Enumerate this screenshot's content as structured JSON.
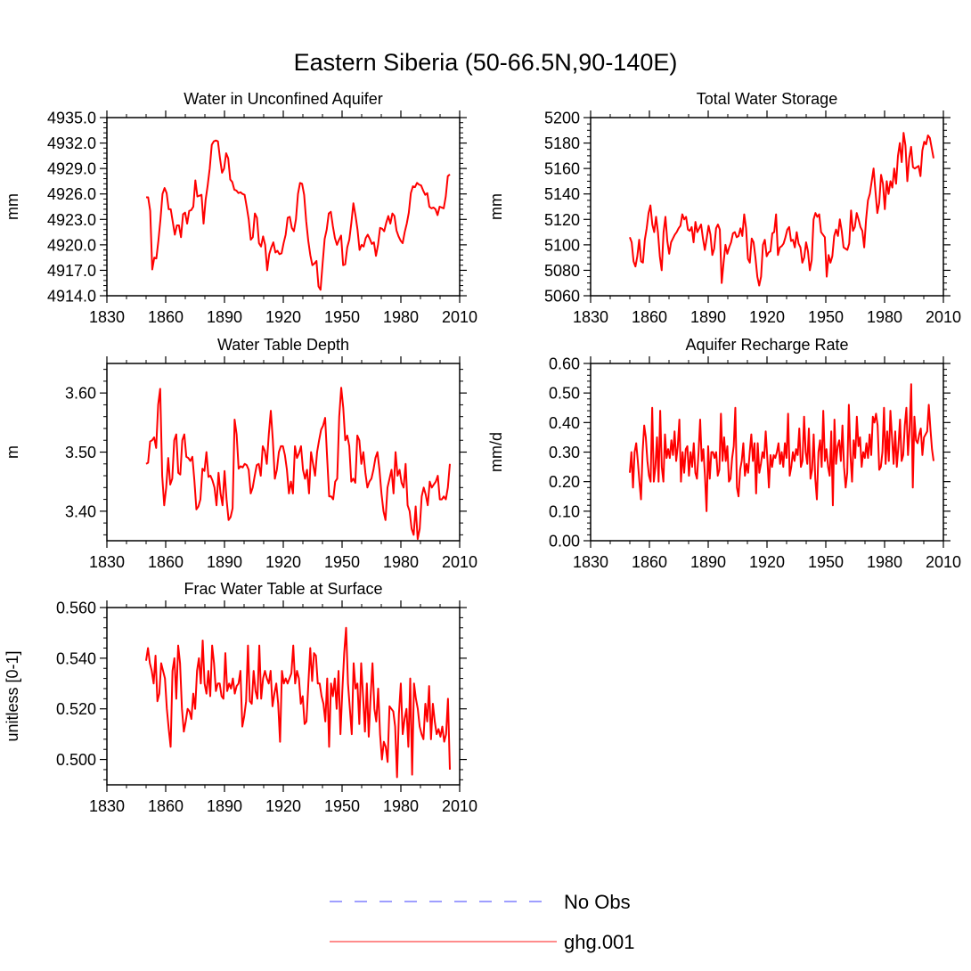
{
  "figure": {
    "title": "Eastern Siberia (50-66.5N,90-140E)",
    "line_color": "#ff0000",
    "obs_color": "#7f7fff"
  },
  "legend": {
    "entries": [
      {
        "label": "No Obs",
        "style": "dashed",
        "color": "#7f7fff"
      },
      {
        "label": "ghg.001",
        "style": "solid",
        "color": "#ff0000"
      }
    ]
  },
  "chart_data": [
    {
      "type": "line",
      "title": "Water in Unconfined Aquifer",
      "ylabel": "mm",
      "xlabel": "",
      "xlim": [
        1830,
        2010
      ],
      "xticks": [
        1830,
        1860,
        1890,
        1920,
        1950,
        1980,
        2010
      ],
      "ylim": [
        4914,
        4935
      ],
      "yticks": [
        4914,
        4917,
        4920,
        4923,
        4926,
        4929,
        4932,
        4935
      ],
      "ytick_labels": [
        "4914.0",
        "4917.0",
        "4920.0",
        "4923.0",
        "4926.0",
        "4929.0",
        "4932.0",
        "4935.0"
      ],
      "yminor": 5,
      "xstart": 1850,
      "series": [
        {
          "name": "ghg.001",
          "values": [
            4925.6,
            4925.6,
            4924,
            4917.1,
            4918.5,
            4918.4,
            4920.5,
            4923,
            4926,
            4926.7,
            4926.1,
            4924.2,
            4924.2,
            4922.7,
            4921.2,
            4922.3,
            4922.3,
            4920.9,
            4923.6,
            4923.8,
            4922.5,
            4924,
            4924.1,
            4924.5,
            4927.6,
            4925.7,
            4925.8,
            4925.9,
            4922.5,
            4925.3,
            4927,
            4929,
            4931.8,
            4932.2,
            4932.3,
            4932.2,
            4930.2,
            4928.5,
            4929,
            4930.8,
            4930.2,
            4927.7,
            4927.4,
            4926.5,
            4926.4,
            4926.1,
            4926.2,
            4926,
            4925.9,
            4924.5,
            4923,
            4920.6,
            4920.9,
            4923.7,
            4923.2,
            4920.2,
            4919.8,
            4921,
            4920,
            4917,
            4918.9,
            4919.7,
            4920.3,
            4919.1,
            4919.3,
            4918.9,
            4919,
            4920.2,
            4921.2,
            4923.2,
            4923.3,
            4922,
            4921.6,
            4923,
            4926,
            4927.3,
            4927.2,
            4925.9,
            4922.8,
            4920.5,
            4918.8,
            4917.6,
            4917.8,
            4918.1,
            4915.1,
            4914.7,
            4917.8,
            4920.7,
            4921.8,
            4923.7,
            4923.9,
            4922.2,
            4920.8,
            4920,
            4920.6,
            4921.1,
            4917.6,
            4917.7,
            4919.7,
            4920.6,
            4922.6,
            4924.9,
            4923.5,
            4921.8,
            4919.4,
            4920,
            4919.8,
            4920.8,
            4921.2,
            4920.7,
            4920.1,
            4920.3,
            4918.7,
            4920,
            4922,
            4921.9,
            4921.6,
            4922.6,
            4923.4,
            4922.5,
            4923.7,
            4923.4,
            4921.7,
            4921,
            4920.5,
            4920.2,
            4921.5,
            4922.5,
            4923.8,
            4926.1,
            4926.9,
            4926.8,
            4927.3,
            4927.1,
            4927,
            4926.4,
            4925.9,
            4926.1,
            4924.5,
            4924.3,
            4924.4,
            4924.2,
            4923.5,
            4924.5,
            4924.4,
            4924.3,
            4925.7,
            4928.1,
            4928.3
          ]
        }
      ]
    },
    {
      "type": "line",
      "title": "Total Water Storage",
      "ylabel": "mm",
      "xlabel": "",
      "xlim": [
        1830,
        2010
      ],
      "xticks": [
        1830,
        1860,
        1890,
        1920,
        1950,
        1980,
        2010
      ],
      "ylim": [
        5060,
        5200
      ],
      "yticks": [
        5060,
        5080,
        5100,
        5120,
        5140,
        5160,
        5180,
        5200
      ],
      "ytick_labels": [
        "5060",
        "5080",
        "5100",
        "5120",
        "5140",
        "5160",
        "5180",
        "5200"
      ],
      "yminor": 4,
      "xstart": 1850,
      "series": [
        {
          "name": "ghg.001",
          "values": [
            5106,
            5102,
            5087,
            5083,
            5091,
            5104,
            5087,
            5086,
            5104,
            5113,
            5125,
            5131,
            5116,
            5110,
            5122,
            5110,
            5091,
            5080,
            5110,
            5122,
            5103,
            5093,
            5102,
            5105,
            5108,
            5110,
            5113,
            5115,
            5124,
            5120,
            5122,
            5112,
            5111,
            5114,
            5102,
            5118,
            5110,
            5113,
            5116,
            5105,
            5096,
            5105,
            5115,
            5108,
            5092,
            5097,
            5113,
            5116,
            5112,
            5070,
            5086,
            5100,
            5093,
            5098,
            5102,
            5109,
            5110,
            5106,
            5107,
            5113,
            5107,
            5124,
            5113,
            5089,
            5086,
            5105,
            5102,
            5090,
            5075,
            5068,
            5075,
            5100,
            5104,
            5091,
            5094,
            5095,
            5109,
            5110,
            5124,
            5092,
            5098,
            5099,
            5101,
            5106,
            5112,
            5114,
            5103,
            5104,
            5098,
            5110,
            5101,
            5098,
            5086,
            5090,
            5102,
            5095,
            5080,
            5088,
            5120,
            5125,
            5122,
            5124,
            5110,
            5108,
            5106,
            5075,
            5092,
            5086,
            5091,
            5107,
            5112,
            5107,
            5120,
            5111,
            5098,
            5097,
            5096,
            5101,
            5127,
            5111,
            5114,
            5125,
            5120,
            5114,
            5111,
            5098,
            5120,
            5135,
            5140,
            5150,
            5160,
            5142,
            5125,
            5133,
            5155,
            5148,
            5128,
            5150,
            5140,
            5150,
            5145,
            5160,
            5148,
            5170,
            5180,
            5165,
            5188,
            5178,
            5150,
            5168,
            5177,
            5161,
            5160,
            5161,
            5162,
            5154,
            5174,
            5181,
            5179,
            5186,
            5184,
            5176,
            5168
          ]
        }
      ]
    },
    {
      "type": "line",
      "title": "Water Table Depth",
      "ylabel": "m",
      "xlabel": "",
      "xlim": [
        1830,
        2010
      ],
      "xticks": [
        1830,
        1860,
        1890,
        1920,
        1950,
        1980,
        2010
      ],
      "ylim": [
        3.35,
        3.65
      ],
      "yticks": [
        3.4,
        3.5,
        3.6
      ],
      "ytick_labels": [
        "3.40",
        "3.50",
        "3.60"
      ],
      "yminor": 5,
      "xstart": 1850,
      "series": [
        {
          "name": "ghg.001",
          "values": [
            3.48,
            3.482,
            3.518,
            3.52,
            3.525,
            3.507,
            3.58,
            3.607,
            3.46,
            3.41,
            3.44,
            3.49,
            3.445,
            3.455,
            3.52,
            3.53,
            3.465,
            3.462,
            3.52,
            3.53,
            3.492,
            3.49,
            3.485,
            3.492,
            3.452,
            3.403,
            3.408,
            3.42,
            3.472,
            3.468,
            3.5,
            3.458,
            3.46,
            3.452,
            3.44,
            3.41,
            3.465,
            3.43,
            3.41,
            3.468,
            3.42,
            3.385,
            3.39,
            3.405,
            3.555,
            3.53,
            3.472,
            3.476,
            3.474,
            3.48,
            3.478,
            3.47,
            3.43,
            3.44,
            3.46,
            3.478,
            3.48,
            3.46,
            3.51,
            3.502,
            3.48,
            3.53,
            3.57,
            3.52,
            3.455,
            3.47,
            3.5,
            3.51,
            3.51,
            3.495,
            3.47,
            3.43,
            3.45,
            3.43,
            3.51,
            3.49,
            3.498,
            3.51,
            3.47,
            3.455,
            3.47,
            3.43,
            3.5,
            3.48,
            3.46,
            3.5,
            3.52,
            3.538,
            3.545,
            3.558,
            3.49,
            3.425,
            3.425,
            3.42,
            3.45,
            3.455,
            3.56,
            3.609,
            3.575,
            3.52,
            3.528,
            3.51,
            3.45,
            3.455,
            3.448,
            3.528,
            3.52,
            3.48,
            3.5,
            3.465,
            3.44,
            3.45,
            3.455,
            3.47,
            3.49,
            3.5,
            3.47,
            3.43,
            3.4,
            3.385,
            3.44,
            3.455,
            3.47,
            3.43,
            3.5,
            3.46,
            3.47,
            3.448,
            3.44,
            3.48,
            3.41,
            3.4,
            3.37,
            3.36,
            3.408,
            3.353,
            3.37,
            3.425,
            3.44,
            3.428,
            3.41,
            3.45,
            3.44,
            3.445,
            3.45,
            3.46,
            3.42,
            3.42,
            3.425,
            3.42,
            3.44,
            3.48
          ]
        }
      ]
    },
    {
      "type": "line",
      "title": "Aquifer Recharge Rate",
      "ylabel": "mm/d",
      "xlabel": "",
      "xlim": [
        1830,
        2010
      ],
      "xticks": [
        1830,
        1860,
        1890,
        1920,
        1950,
        1980,
        2010
      ],
      "ylim": [
        0,
        0.6
      ],
      "yticks": [
        0,
        0.1,
        0.2,
        0.3,
        0.4,
        0.5,
        0.6
      ],
      "ytick_labels": [
        "0.00",
        "0.10",
        "0.20",
        "0.30",
        "0.40",
        "0.50",
        "0.60"
      ],
      "yminor": 5,
      "xstart": 1850,
      "series": [
        {
          "name": "ghg.001",
          "values": [
            0.23,
            0.3,
            0.18,
            0.3,
            0.33,
            0.27,
            0.2,
            0.14,
            0.3,
            0.39,
            0.35,
            0.27,
            0.22,
            0.2,
            0.45,
            0.2,
            0.25,
            0.35,
            0.2,
            0.44,
            0.25,
            0.2,
            0.36,
            0.28,
            0.31,
            0.28,
            0.34,
            0.29,
            0.37,
            0.27,
            0.32,
            0.41,
            0.2,
            0.3,
            0.23,
            0.31,
            0.32,
            0.22,
            0.3,
            0.25,
            0.33,
            0.23,
            0.21,
            0.3,
            0.41,
            0.27,
            0.31,
            0.22,
            0.1,
            0.32,
            0.21,
            0.3,
            0.3,
            0.28,
            0.3,
            0.22,
            0.24,
            0.43,
            0.27,
            0.35,
            0.27,
            0.32,
            0.2,
            0.21,
            0.28,
            0.32,
            0.45,
            0.18,
            0.15,
            0.24,
            0.27,
            0.33,
            0.22,
            0.26,
            0.23,
            0.3,
            0.36,
            0.27,
            0.33,
            0.16,
            0.33,
            0.23,
            0.26,
            0.3,
            0.28,
            0.37,
            0.28,
            0.18,
            0.29,
            0.25,
            0.29,
            0.28,
            0.3,
            0.33,
            0.26,
            0.3,
            0.25,
            0.33,
            0.28,
            0.43,
            0.22,
            0.25,
            0.3,
            0.27,
            0.31,
            0.29,
            0.38,
            0.25,
            0.27,
            0.42,
            0.3,
            0.26,
            0.38,
            0.21,
            0.24,
            0.36,
            0.21,
            0.14,
            0.3,
            0.34,
            0.25,
            0.44,
            0.27,
            0.31,
            0.25,
            0.22,
            0.37,
            0.12,
            0.41,
            0.26,
            0.32,
            0.34,
            0.27,
            0.39,
            0.25,
            0.18,
            0.23,
            0.46,
            0.29,
            0.2,
            0.34,
            0.28,
            0.42,
            0.32,
            0.35,
            0.25,
            0.3,
            0.28,
            0.33,
            0.28,
            0.36,
            0.29,
            0.42,
            0.4,
            0.43,
            0.39,
            0.24,
            0.25,
            0.3,
            0.45,
            0.26,
            0.37,
            0.27,
            0.44,
            0.35,
            0.26,
            0.37,
            0.25,
            0.32,
            0.41,
            0.27,
            0.29,
            0.39,
            0.45,
            0.29,
            0.38,
            0.53,
            0.18,
            0.42,
            0.34,
            0.33,
            0.36,
            0.38,
            0.29,
            0.35,
            0.36,
            0.37,
            0.46,
            0.38,
            0.31,
            0.27
          ]
        }
      ]
    },
    {
      "type": "line",
      "title": "Frac Water Table at Surface",
      "ylabel": "unitless [0-1]",
      "xlabel": "",
      "xlim": [
        1830,
        2010
      ],
      "xticks": [
        1830,
        1860,
        1890,
        1920,
        1950,
        1980,
        2010
      ],
      "ylim": [
        0.49,
        0.56
      ],
      "yticks": [
        0.5,
        0.52,
        0.54,
        0.56
      ],
      "ytick_labels": [
        "0.500",
        "0.520",
        "0.540",
        "0.560"
      ],
      "yminor": 5,
      "xstart": 1850,
      "series": [
        {
          "name": "ghg.001",
          "values": [
            0.539,
            0.544,
            0.538,
            0.535,
            0.53,
            0.541,
            0.523,
            0.526,
            0.538,
            0.535,
            0.532,
            0.52,
            0.512,
            0.505,
            0.535,
            0.54,
            0.524,
            0.545,
            0.538,
            0.52,
            0.511,
            0.515,
            0.52,
            0.519,
            0.516,
            0.526,
            0.52,
            0.535,
            0.54,
            0.53,
            0.547,
            0.53,
            0.526,
            0.535,
            0.525,
            0.545,
            0.538,
            0.527,
            0.53,
            0.53,
            0.525,
            0.524,
            0.542,
            0.527,
            0.53,
            0.528,
            0.532,
            0.526,
            0.529,
            0.53,
            0.535,
            0.513,
            0.517,
            0.523,
            0.545,
            0.523,
            0.522,
            0.535,
            0.527,
            0.524,
            0.545,
            0.524,
            0.532,
            0.535,
            0.532,
            0.53,
            0.535,
            0.521,
            0.526,
            0.53,
            0.522,
            0.507,
            0.535,
            0.53,
            0.532,
            0.53,
            0.532,
            0.534,
            0.545,
            0.53,
            0.535,
            0.532,
            0.522,
            0.525,
            0.514,
            0.515,
            0.53,
            0.544,
            0.531,
            0.542,
            0.541,
            0.53,
            0.53,
            0.525,
            0.522,
            0.515,
            0.532,
            0.505,
            0.53,
            0.525,
            0.532,
            0.52,
            0.535,
            0.51,
            0.527,
            0.542,
            0.552,
            0.53,
            0.52,
            0.51,
            0.538,
            0.528,
            0.53,
            0.514,
            0.538,
            0.525,
            0.511,
            0.53,
            0.509,
            0.525,
            0.538,
            0.52,
            0.515,
            0.528,
            0.51,
            0.5,
            0.507,
            0.505,
            0.499,
            0.521,
            0.52,
            0.519,
            0.513,
            0.493,
            0.518,
            0.53,
            0.51,
            0.516,
            0.52,
            0.505,
            0.532,
            0.494,
            0.53,
            0.524,
            0.52,
            0.513,
            0.51,
            0.508,
            0.522,
            0.515,
            0.529,
            0.508,
            0.522,
            0.515,
            0.51,
            0.512,
            0.509,
            0.513,
            0.507,
            0.51,
            0.524,
            0.496
          ]
        }
      ]
    }
  ]
}
